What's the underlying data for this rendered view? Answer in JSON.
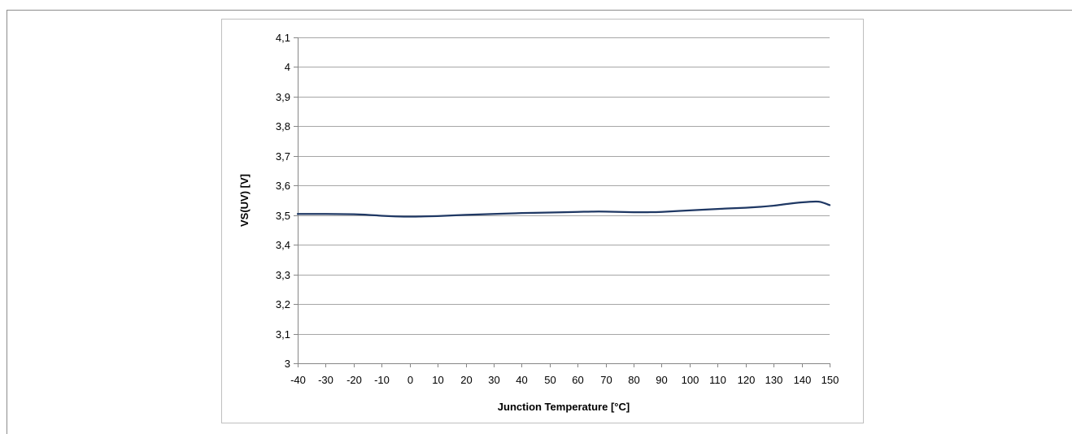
{
  "chart_data": {
    "type": "line",
    "title": "",
    "xlabel": "Junction Temperature [°C]",
    "ylabel": "VS(UV) [V]",
    "xlim": [
      -40,
      150
    ],
    "ylim": [
      3,
      4.1
    ],
    "x_ticks": [
      -40,
      -30,
      -20,
      -10,
      0,
      10,
      20,
      30,
      40,
      50,
      60,
      70,
      80,
      90,
      100,
      110,
      120,
      130,
      140,
      150
    ],
    "x_tick_labels": [
      "-40",
      "-30",
      "-20",
      "-10",
      "0",
      "10",
      "20",
      "30",
      "40",
      "50",
      "60",
      "70",
      "80",
      "90",
      "100",
      "110",
      "120",
      "130",
      "140",
      "150"
    ],
    "y_ticks": [
      3,
      3.1,
      3.2,
      3.3,
      3.4,
      3.5,
      3.6,
      3.7,
      3.8,
      3.9,
      4,
      4.1
    ],
    "y_tick_labels": [
      "3",
      "3,1",
      "3,2",
      "3,3",
      "3,4",
      "3,5",
      "3,6",
      "3,7",
      "3,8",
      "3,9",
      "4",
      "4,1"
    ],
    "grid": "horizontal",
    "legend": "none",
    "series": [
      {
        "color": "#1f3864",
        "x": [
          -40,
          -30,
          -20,
          -15,
          -10,
          -5,
          0,
          5,
          10,
          20,
          30,
          40,
          50,
          60,
          65,
          70,
          80,
          85,
          90,
          100,
          110,
          120,
          125,
          130,
          135,
          140,
          145,
          147,
          150
        ],
        "y": [
          3.504,
          3.504,
          3.503,
          3.501,
          3.498,
          3.496,
          3.495,
          3.496,
          3.497,
          3.501,
          3.504,
          3.507,
          3.509,
          3.511,
          3.512,
          3.512,
          3.51,
          3.51,
          3.511,
          3.516,
          3.521,
          3.525,
          3.528,
          3.532,
          3.538,
          3.543,
          3.546,
          3.544,
          3.534
        ]
      }
    ]
  }
}
